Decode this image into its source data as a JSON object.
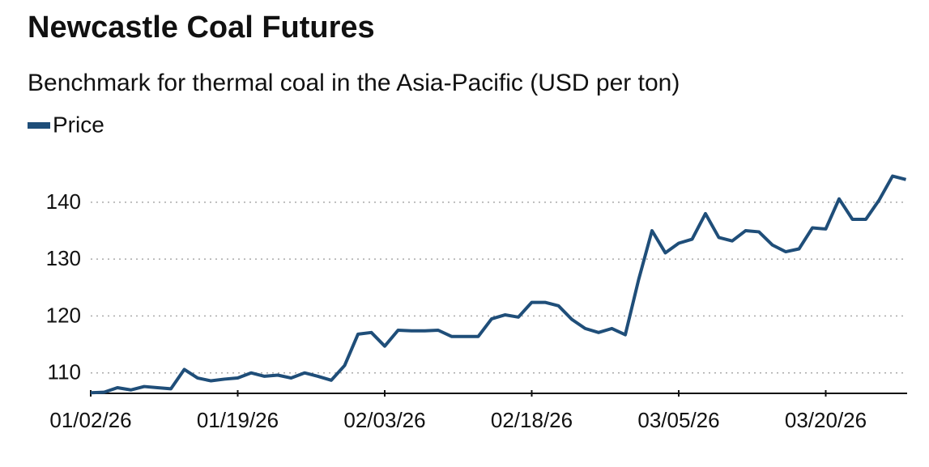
{
  "chart_data": {
    "type": "line",
    "title": "Newcastle Coal Futures",
    "subtitle": "Benchmark for thermal coal in the Asia-Pacific (USD per ton)",
    "categories": [
      "01/02/26",
      null,
      null,
      null,
      null,
      null,
      null,
      null,
      null,
      null,
      null,
      "01/19/26",
      null,
      null,
      null,
      null,
      null,
      null,
      null,
      null,
      null,
      null,
      "02/03/26",
      null,
      null,
      null,
      null,
      null,
      null,
      null,
      null,
      null,
      null,
      "02/18/26",
      null,
      null,
      null,
      null,
      null,
      null,
      null,
      null,
      null,
      null,
      "03/05/26",
      null,
      null,
      null,
      null,
      null,
      null,
      null,
      null,
      null,
      null,
      "03/20/26",
      null,
      null,
      null,
      null,
      null,
      null
    ],
    "series": [
      {
        "name": "Price",
        "color": "#1f4e79",
        "values": [
          106.5,
          106.6,
          107.4,
          107.0,
          107.6,
          107.4,
          107.2,
          110.6,
          109.1,
          108.6,
          108.9,
          109.1,
          110.0,
          109.4,
          109.6,
          109.1,
          110.0,
          109.4,
          108.7,
          111.3,
          116.8,
          117.1,
          114.7,
          117.5,
          117.4,
          117.4,
          117.5,
          116.4,
          116.4,
          116.4,
          119.5,
          120.2,
          119.8,
          122.4,
          122.4,
          121.8,
          119.4,
          117.8,
          117.1,
          117.8,
          116.7,
          126.4,
          135.0,
          131.1,
          132.8,
          133.5,
          138.0,
          133.8,
          133.2,
          135.0,
          134.8,
          132.5,
          131.3,
          131.8,
          135.5,
          135.3,
          140.6,
          137.0,
          137.0,
          140.4,
          144.6,
          144.0
        ]
      }
    ],
    "ylim": [
      106.4,
      147.1
    ],
    "yticks": [
      110,
      120,
      130,
      140
    ],
    "grid": true
  }
}
